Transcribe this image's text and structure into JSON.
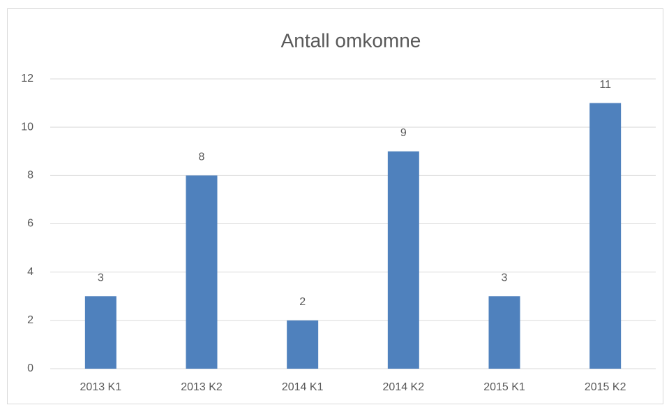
{
  "chart_data": {
    "type": "bar",
    "title": "Antall omkomne",
    "categories": [
      "2013 K1",
      "2013 K2",
      "2014 K1",
      "2014 K2",
      "2015 K1",
      "2015 K2"
    ],
    "values": [
      3,
      8,
      2,
      9,
      3,
      11
    ],
    "color": "#4f81bd",
    "ylim": [
      0,
      12
    ],
    "yticks": [
      0,
      2,
      4,
      6,
      8,
      10,
      12
    ],
    "grid": true
  }
}
